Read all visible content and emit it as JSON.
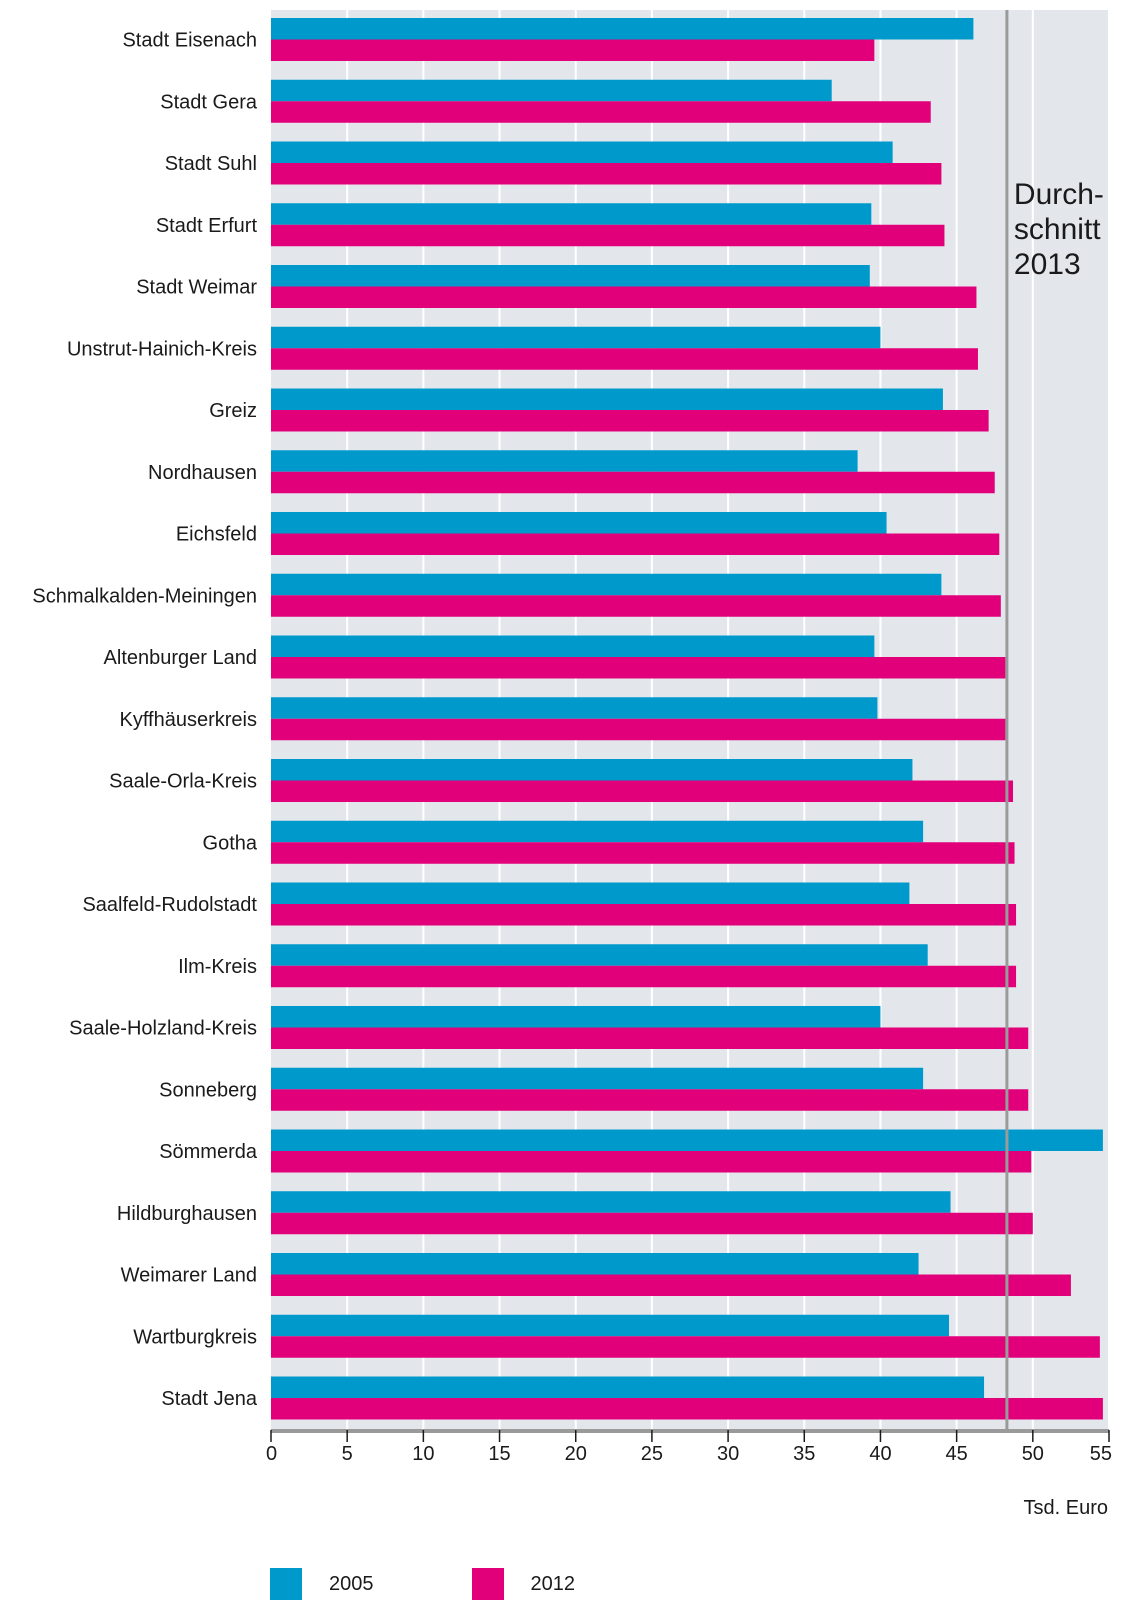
{
  "chart_data": {
    "type": "bar",
    "orientation": "horizontal",
    "categories": [
      "Stadt Eisenach",
      "Stadt Gera",
      "Stadt Suhl",
      "Stadt Erfurt",
      "Stadt Weimar",
      "Unstrut-Hainich-Kreis",
      "Greiz",
      "Nordhausen",
      "Eichsfeld",
      "Schmalkalden-Meiningen",
      "Altenburger Land",
      "Kyffhäuserkreis",
      "Saale-Orla-Kreis",
      "Gotha",
      "Saalfeld-Rudolstadt",
      "Ilm-Kreis",
      "Saale-Holzland-Kreis",
      "Sonneberg",
      "Sömmerda",
      "Hildburghausen",
      "Weimarer Land",
      "Wartburgkreis",
      "Stadt Jena"
    ],
    "series": [
      {
        "name": "2005",
        "color": "#0099cc",
        "values": [
          46.1,
          36.8,
          40.8,
          39.4,
          39.3,
          40.0,
          44.1,
          38.5,
          40.4,
          44.0,
          39.6,
          39.8,
          42.1,
          42.8,
          41.9,
          43.1,
          40.0,
          42.8,
          54.6,
          44.6,
          42.5,
          44.5,
          46.8
        ]
      },
      {
        "name": "2012",
        "color": "#e2007a",
        "values": [
          39.6,
          43.3,
          44.0,
          44.2,
          46.3,
          46.4,
          47.1,
          47.5,
          47.8,
          47.9,
          48.2,
          48.2,
          48.7,
          48.8,
          48.9,
          48.9,
          49.7,
          49.7,
          49.9,
          50.0,
          52.5,
          54.4,
          54.6
        ]
      }
    ],
    "xlim": [
      0,
      55
    ],
    "ticks": [
      "0",
      "5",
      "10",
      "15",
      "20",
      "25",
      "30",
      "35",
      "40",
      "45",
      "50",
      "55"
    ],
    "xlabel": "Tsd. Euro",
    "reference_line": {
      "value": 48.3,
      "label_lines": [
        "Durch-",
        "schnitt",
        "2013"
      ]
    },
    "grid": true,
    "legend_position": "bottom-left",
    "plot_background": "#e3e7ec"
  }
}
